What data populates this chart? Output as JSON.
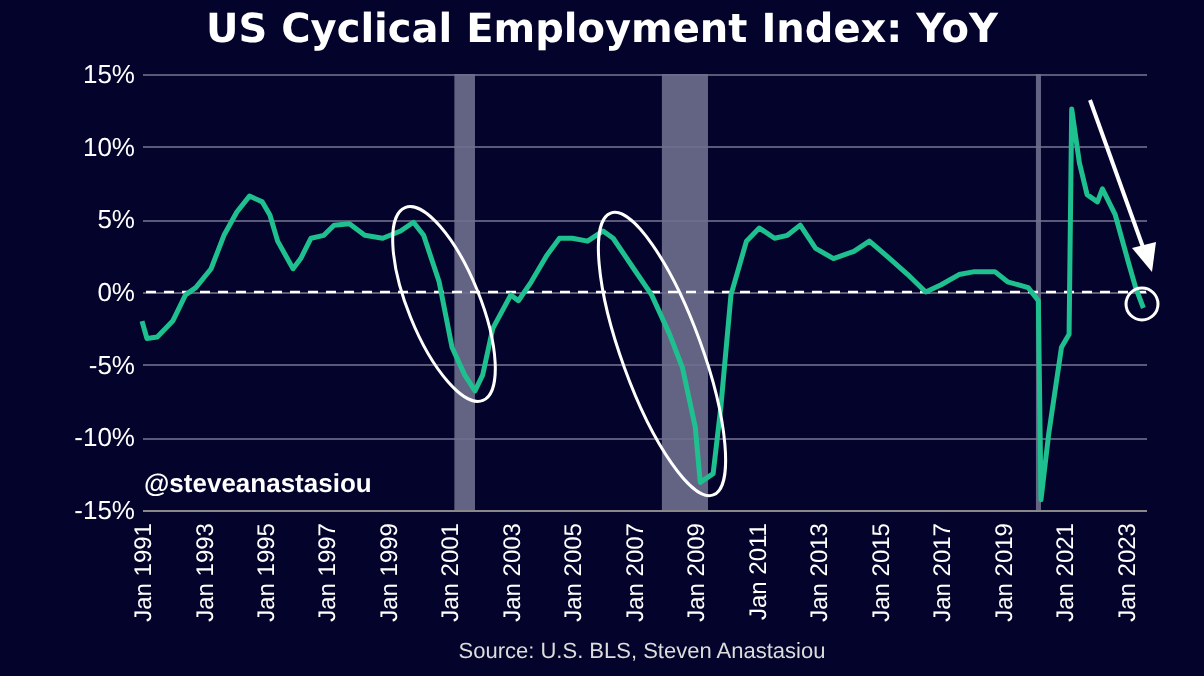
{
  "chart_data": {
    "type": "line",
    "title": "US Cyclical Employment Index: YoY",
    "color": "#1fc08f",
    "grid": "y",
    "annotations": [
      "@steveanastasiou",
      "Source: U.S. BLS, Steven Anastasiou"
    ],
    "xlim": [
      "1991-01",
      "2023-09"
    ],
    "ylim": [
      -15,
      15
    ],
    "yticks": [
      {
        "value": -15,
        "label": "-15%"
      },
      {
        "value": -10,
        "label": "-10%"
      },
      {
        "value": -5,
        "label": "-5%"
      },
      {
        "value": 0,
        "label": "0%"
      },
      {
        "value": 5,
        "label": "5%"
      },
      {
        "value": 10,
        "label": "10%"
      },
      {
        "value": 15,
        "label": "15%"
      }
    ],
    "xticks": [
      {
        "value": "1991-01",
        "label": "Jan 1991"
      },
      {
        "value": "1993-01",
        "label": "Jan 1993"
      },
      {
        "value": "1995-01",
        "label": "Jan 1995"
      },
      {
        "value": "1997-01",
        "label": "Jan 1997"
      },
      {
        "value": "1999-01",
        "label": "Jan 1999"
      },
      {
        "value": "2001-01",
        "label": "Jan 2001"
      },
      {
        "value": "2003-01",
        "label": "Jan 2003"
      },
      {
        "value": "2005-01",
        "label": "Jan 2005"
      },
      {
        "value": "2007-01",
        "label": "Jan 2007"
      },
      {
        "value": "2009-01",
        "label": "Jan 2009"
      },
      {
        "value": "2011-01",
        "label": "Jan 2011"
      },
      {
        "value": "2013-01",
        "label": "Jan 2013"
      },
      {
        "value": "2015-01",
        "label": "Jan 2015"
      },
      {
        "value": "2017-01",
        "label": "Jan 2017"
      },
      {
        "value": "2019-01",
        "label": "Jan 2019"
      },
      {
        "value": "2021-01",
        "label": "Jan 2021"
      },
      {
        "value": "2023-01",
        "label": "Jan 2023"
      }
    ],
    "bands": [
      {
        "axis": "x",
        "from": "2001-03",
        "to": "2001-11",
        "color": "#6e6e8e"
      },
      {
        "axis": "x",
        "from": "2007-12",
        "to": "2009-06",
        "color": "#6e6e8e"
      },
      {
        "axis": "x",
        "from": "2020-02",
        "to": "2020-04",
        "color": "#6e6e8e"
      }
    ],
    "ref_lines": [
      {
        "axis": "y",
        "value": 0,
        "color": "#ffffff",
        "line_style": "dashed"
      }
    ],
    "x": [
      "1991-01",
      "1991-03",
      "1991-07",
      "1992-01",
      "1992-06",
      "1992-10",
      "1993-04",
      "1993-09",
      "1994-02",
      "1994-07",
      "1994-12",
      "1995-03",
      "1995-06",
      "1995-12",
      "1996-03",
      "1996-07",
      "1996-12",
      "1997-04",
      "1997-10",
      "1998-04",
      "1998-11",
      "1999-06",
      "1999-11",
      "2000-03",
      "2000-09",
      "2001-02",
      "2001-07",
      "2001-11",
      "2002-02",
      "2002-06",
      "2003-01",
      "2003-04",
      "2003-09",
      "2004-03",
      "2004-08",
      "2005-01",
      "2005-07",
      "2006-01",
      "2006-05",
      "2007-01",
      "2007-08",
      "2008-03",
      "2008-08",
      "2009-01",
      "2009-03",
      "2009-08",
      "2009-11",
      "2010-03",
      "2010-09",
      "2011-02",
      "2011-08",
      "2012-01",
      "2012-06",
      "2012-12",
      "2013-07",
      "2014-03",
      "2014-09",
      "2015-05",
      "2015-12",
      "2016-07",
      "2017-01",
      "2017-08",
      "2018-02",
      "2018-10",
      "2019-03",
      "2019-11",
      "2020-03",
      "2020-04",
      "2020-07",
      "2020-12",
      "2021-03",
      "2021-04",
      "2021-07",
      "2021-10",
      "2022-02",
      "2022-04",
      "2022-09",
      "2023-02",
      "2023-05",
      "2023-08"
    ],
    "values": [
      -2.0,
      -3.2,
      -3.1,
      -2.0,
      -0.2,
      0.3,
      1.6,
      3.9,
      5.5,
      6.6,
      6.2,
      5.3,
      3.5,
      1.6,
      2.3,
      3.7,
      3.9,
      4.6,
      4.7,
      3.9,
      3.7,
      4.2,
      4.8,
      3.9,
      0.7,
      -3.8,
      -5.7,
      -6.8,
      -5.7,
      -2.5,
      -0.2,
      -0.6,
      0.7,
      2.5,
      3.7,
      3.7,
      3.5,
      4.2,
      3.7,
      1.6,
      -0.2,
      -2.9,
      -5.2,
      -9.3,
      -13.1,
      -12.5,
      -7.9,
      -0.2,
      3.5,
      4.4,
      3.7,
      3.9,
      4.6,
      3.0,
      2.3,
      2.8,
      3.5,
      2.3,
      1.2,
      0.0,
      0.5,
      1.2,
      1.4,
      1.4,
      0.7,
      0.3,
      -0.6,
      -14.3,
      -9.8,
      -3.8,
      -2.9,
      12.6,
      8.9,
      6.7,
      6.2,
      7.1,
      5.3,
      2.1,
      0.3,
      -1.1
    ]
  }
}
